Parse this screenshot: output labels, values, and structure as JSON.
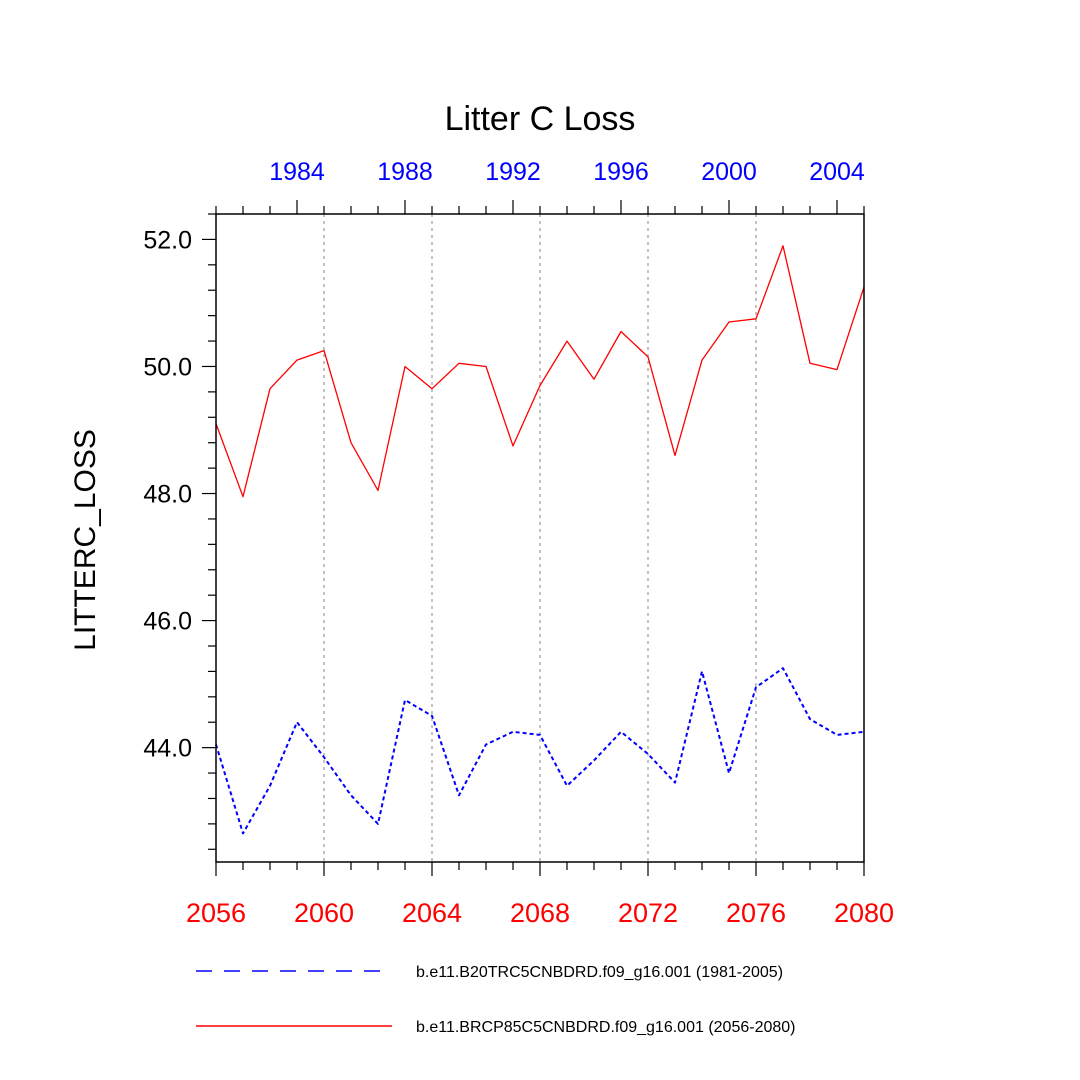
{
  "colors": {
    "hist": "#0000ff",
    "future": "#ff0000",
    "grid": "#999999",
    "axis": "#000000"
  },
  "chart_data": {
    "type": "line",
    "title": "Litter C Loss",
    "ylabel": "LITTERC_LOSS",
    "xlabel": "",
    "ylim": [
      42.2,
      52.4
    ],
    "yticks": [
      "44.0",
      "46.0",
      "48.0",
      "50.0",
      "52.0"
    ],
    "ytick_values": [
      44,
      46,
      48,
      50,
      52
    ],
    "grid": "vertical dotted lines at bottom-axis major ticks",
    "legend_position": "bottom",
    "x_bottom": {
      "range": [
        2056,
        2080
      ],
      "ticks": [
        "2056",
        "2060",
        "2064",
        "2068",
        "2072",
        "2076",
        "2080"
      ],
      "tick_values": [
        2056,
        2060,
        2064,
        2068,
        2072,
        2076,
        2080
      ]
    },
    "x_top": {
      "range": [
        1981,
        2005
      ],
      "ticks": [
        "1984",
        "1988",
        "1992",
        "1996",
        "2000",
        "2004"
      ],
      "tick_values": [
        1984,
        1988,
        1992,
        1996,
        2000,
        2004
      ]
    },
    "series": [
      {
        "name": "b.e11.BRCP85C5CNBDRD.f09_g16.001 (2056-2080)",
        "style": "solid",
        "color": "#ff0000",
        "x": [
          2056,
          2057,
          2058,
          2059,
          2060,
          2061,
          2062,
          2063,
          2064,
          2065,
          2066,
          2067,
          2068,
          2069,
          2070,
          2071,
          2072,
          2073,
          2074,
          2075,
          2076,
          2077,
          2078,
          2079,
          2080
        ],
        "values": [
          49.1,
          47.95,
          49.65,
          50.1,
          50.25,
          48.8,
          48.05,
          50.0,
          49.65,
          50.05,
          50.0,
          48.75,
          49.7,
          50.4,
          49.8,
          50.55,
          50.15,
          48.6,
          50.1,
          50.7,
          50.75,
          51.9,
          50.05,
          49.95,
          51.25
        ]
      },
      {
        "name": "b.e11.B20TRC5CNBDRD.f09_g16.001 (1981-2005)",
        "style": "dashed",
        "color": "#0000ff",
        "x": [
          1981,
          1982,
          1983,
          1984,
          1985,
          1986,
          1987,
          1988,
          1989,
          1990,
          1991,
          1992,
          1993,
          1994,
          1995,
          1996,
          1997,
          1998,
          1999,
          2000,
          2001,
          2002,
          2003,
          2004,
          2005
        ],
        "values": [
          44.05,
          42.65,
          43.4,
          44.4,
          43.85,
          43.25,
          42.8,
          44.75,
          44.5,
          43.25,
          44.05,
          44.25,
          44.2,
          43.4,
          43.8,
          44.25,
          43.9,
          43.45,
          45.2,
          43.6,
          44.95,
          45.25,
          44.45,
          44.2,
          44.25
        ]
      }
    ],
    "legend": [
      {
        "label": "b.e11.B20TRC5CNBDRD.f09_g16.001 (1981-2005)",
        "style": "dashed",
        "color": "#0000ff"
      },
      {
        "label": "b.e11.BRCP85C5CNBDRD.f09_g16.001 (2056-2080)",
        "style": "solid",
        "color": "#ff0000"
      }
    ]
  }
}
